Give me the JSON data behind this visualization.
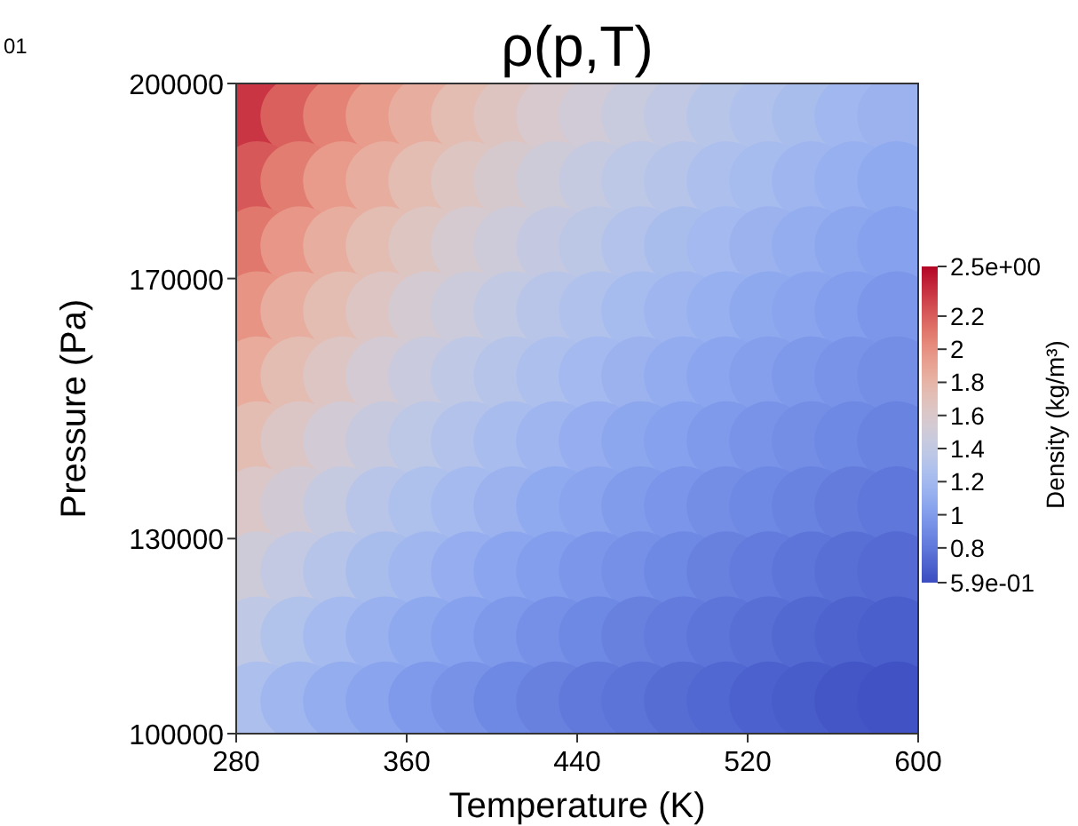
{
  "chart_data": {
    "type": "scatter",
    "title": "ρ(p,T)",
    "xlabel": "Temperature (K)",
    "ylabel": "Pressure (Pa)",
    "clabel": "Density (kg/m³)",
    "annotations": [
      "01"
    ],
    "marker": "circle",
    "xlim": [
      280,
      600
    ],
    "xticks": [
      280,
      360,
      440,
      520,
      600
    ],
    "ylim": [
      100000,
      200000
    ],
    "yticks": [
      100000,
      130000,
      170000,
      200000
    ],
    "x": [
      290,
      310,
      330,
      350,
      370,
      390,
      410,
      430,
      450,
      470,
      490,
      510,
      530,
      550,
      570,
      590,
      290,
      310,
      330,
      350,
      370,
      390,
      410,
      430,
      450,
      470,
      490,
      510,
      530,
      550,
      570,
      590,
      290,
      310,
      330,
      350,
      370,
      390,
      410,
      430,
      450,
      470,
      490,
      510,
      530,
      550,
      570,
      590,
      290,
      310,
      330,
      350,
      370,
      390,
      410,
      430,
      450,
      470,
      490,
      510,
      530,
      550,
      570,
      590,
      290,
      310,
      330,
      350,
      370,
      390,
      410,
      430,
      450,
      470,
      490,
      510,
      530,
      550,
      570,
      590,
      290,
      310,
      330,
      350,
      370,
      390,
      410,
      430,
      450,
      470,
      490,
      510,
      530,
      550,
      570,
      590,
      290,
      310,
      330,
      350,
      370,
      390,
      410,
      430,
      450,
      470,
      490,
      510,
      530,
      550,
      570,
      590,
      290,
      310,
      330,
      350,
      370,
      390,
      410,
      430,
      450,
      470,
      490,
      510,
      530,
      550,
      570,
      590,
      290,
      310,
      330,
      350,
      370,
      390,
      410,
      430,
      450,
      470,
      490,
      510,
      530,
      550,
      570,
      590,
      290,
      310,
      330,
      350,
      370,
      390,
      410,
      430,
      450,
      470,
      490,
      510,
      530,
      550,
      570,
      590
    ],
    "values": [
      195000,
      195000,
      195000,
      195000,
      195000,
      195000,
      195000,
      195000,
      195000,
      195000,
      195000,
      195000,
      195000,
      195000,
      195000,
      195000,
      185000,
      185000,
      185000,
      185000,
      185000,
      185000,
      185000,
      185000,
      185000,
      185000,
      185000,
      185000,
      185000,
      185000,
      185000,
      185000,
      175000,
      175000,
      175000,
      175000,
      175000,
      175000,
      175000,
      175000,
      175000,
      175000,
      175000,
      175000,
      175000,
      175000,
      175000,
      175000,
      165000,
      165000,
      165000,
      165000,
      165000,
      165000,
      165000,
      165000,
      165000,
      165000,
      165000,
      165000,
      165000,
      165000,
      165000,
      165000,
      155000,
      155000,
      155000,
      155000,
      155000,
      155000,
      155000,
      155000,
      155000,
      155000,
      155000,
      155000,
      155000,
      155000,
      155000,
      155000,
      145000,
      145000,
      145000,
      145000,
      145000,
      145000,
      145000,
      145000,
      145000,
      145000,
      145000,
      145000,
      145000,
      145000,
      145000,
      145000,
      135000,
      135000,
      135000,
      135000,
      135000,
      135000,
      135000,
      135000,
      135000,
      135000,
      135000,
      135000,
      135000,
      135000,
      135000,
      135000,
      125000,
      125000,
      125000,
      125000,
      125000,
      125000,
      125000,
      125000,
      125000,
      125000,
      125000,
      125000,
      125000,
      125000,
      125000,
      125000,
      115000,
      115000,
      115000,
      115000,
      115000,
      115000,
      115000,
      115000,
      115000,
      115000,
      115000,
      115000,
      115000,
      115000,
      115000,
      115000,
      105000,
      105000,
      105000,
      105000,
      105000,
      105000,
      105000,
      105000,
      105000,
      105000,
      105000,
      105000,
      105000,
      105000,
      105000,
      105000
    ],
    "cvalues": [
      2.34,
      2.19,
      2.06,
      1.94,
      1.84,
      1.74,
      1.66,
      1.58,
      1.51,
      1.45,
      1.39,
      1.33,
      1.28,
      1.24,
      1.19,
      1.15,
      2.22,
      2.08,
      1.95,
      1.84,
      1.74,
      1.65,
      1.57,
      1.5,
      1.43,
      1.37,
      1.32,
      1.26,
      1.22,
      1.17,
      1.13,
      1.09,
      2.1,
      1.97,
      1.85,
      1.74,
      1.65,
      1.56,
      1.49,
      1.42,
      1.36,
      1.3,
      1.24,
      1.2,
      1.15,
      1.11,
      1.07,
      1.03,
      1.98,
      1.85,
      1.74,
      1.64,
      1.55,
      1.47,
      1.4,
      1.34,
      1.28,
      1.22,
      1.17,
      1.13,
      1.08,
      1.05,
      1.01,
      0.97,
      1.86,
      1.74,
      1.64,
      1.54,
      1.46,
      1.38,
      1.32,
      1.26,
      1.2,
      1.15,
      1.1,
      1.06,
      1.02,
      0.98,
      0.95,
      0.92,
      1.74,
      1.63,
      1.53,
      1.44,
      1.37,
      1.3,
      1.23,
      1.17,
      1.12,
      1.07,
      1.03,
      0.99,
      0.95,
      0.92,
      0.89,
      0.86,
      1.62,
      1.52,
      1.43,
      1.34,
      1.27,
      1.21,
      1.15,
      1.09,
      1.05,
      1,
      0.96,
      0.92,
      0.89,
      0.86,
      0.83,
      0.8,
      1.5,
      1.41,
      1.32,
      1.24,
      1.18,
      1.12,
      1.06,
      1.01,
      0.97,
      0.93,
      0.89,
      0.85,
      0.82,
      0.79,
      0.76,
      0.74,
      1.38,
      1.29,
      1.21,
      1.14,
      1.08,
      1.03,
      0.98,
      0.93,
      0.89,
      0.85,
      0.82,
      0.79,
      0.76,
      0.73,
      0.7,
      0.68,
      1.26,
      1.18,
      1.11,
      1.05,
      0.99,
      0.94,
      0.89,
      0.85,
      0.81,
      0.78,
      0.75,
      0.72,
      0.69,
      0.67,
      0.64,
      0.62
    ],
    "clim": [
      0.59,
      2.5
    ],
    "cticks": [
      {
        "value": 2.5,
        "label": "2.5e+00"
      },
      2.2,
      2,
      1.8,
      1.6,
      1.4,
      1.2,
      1,
      0.8,
      {
        "value": 0.59,
        "label": "5.9e-01"
      }
    ]
  }
}
